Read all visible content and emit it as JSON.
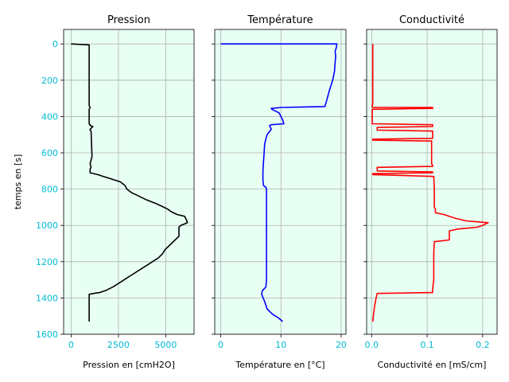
{
  "chart_data": [
    {
      "type": "line",
      "title": "Pression",
      "xlabel": "Pression en [cmH2O]",
      "ylabel": "temps en [s]",
      "xlim": [
        -400,
        6500
      ],
      "ylim": [
        1600,
        -80
      ],
      "xticks": [
        0,
        2500,
        5000
      ],
      "yticks": [
        0,
        200,
        400,
        600,
        800,
        1000,
        1200,
        1400,
        1600
      ],
      "color": "#000000",
      "x": [
        0,
        950,
        950,
        1000,
        950,
        950,
        1000,
        1000,
        1150,
        1000,
        1000,
        1050,
        1100,
        1000,
        1050,
        1000,
        1000,
        1400,
        1700,
        2000,
        2300,
        2600,
        2850,
        2950,
        3200,
        3600,
        4000,
        4500,
        4900,
        5100,
        5300,
        5600,
        6000,
        6100,
        6150,
        6050,
        5800,
        5700,
        5700,
        5600,
        5300,
        5000,
        4800,
        4600,
        4300,
        4000,
        3700,
        3400,
        3100,
        2800,
        2500,
        2200,
        1800,
        1500,
        1200,
        950,
        950,
        950
      ],
      "y": [
        0,
        5,
        340,
        350,
        360,
        440,
        445,
        450,
        455,
        470,
        475,
        480,
        620,
        660,
        680,
        690,
        710,
        720,
        730,
        740,
        750,
        760,
        780,
        800,
        820,
        840,
        860,
        880,
        900,
        910,
        925,
        940,
        950,
        970,
        985,
        990,
        1000,
        1010,
        1060,
        1070,
        1100,
        1130,
        1160,
        1180,
        1200,
        1220,
        1240,
        1260,
        1280,
        1300,
        1320,
        1340,
        1360,
        1370,
        1375,
        1380,
        1450,
        1530
      ]
    },
    {
      "type": "line",
      "title": "Température",
      "xlabel": "Température en [°C]",
      "xlim": [
        -1,
        20.8
      ],
      "ylim": [
        1600,
        -80
      ],
      "xticks": [
        0,
        10,
        20
      ],
      "yticks": [
        0,
        200,
        400,
        600,
        800,
        1000,
        1200,
        1400,
        1600
      ],
      "color": "#0000ff",
      "x": [
        0,
        19.3,
        19.2,
        19.0,
        19.1,
        19.0,
        18.9,
        18.6,
        18.1,
        17.7,
        17.3,
        10.1,
        8.4,
        8.5,
        9.7,
        10.3,
        10.5,
        8.4,
        8.1,
        8.4,
        7.7,
        7.3,
        7.2,
        7.1,
        7.0,
        7.0,
        7.1,
        7.5,
        7.6,
        7.6,
        7.6,
        7.6,
        7.6,
        7.6,
        7.6,
        7.5,
        6.9,
        6.8,
        7.3,
        7.7,
        8.6,
        9.6,
        10.3
      ],
      "y": [
        0,
        0,
        20,
        40,
        70,
        100,
        150,
        200,
        250,
        300,
        345,
        350,
        355,
        360,
        380,
        420,
        440,
        445,
        450,
        470,
        500,
        550,
        600,
        650,
        700,
        750,
        780,
        790,
        800,
        850,
        900,
        1000,
        1100,
        1200,
        1300,
        1340,
        1360,
        1380,
        1420,
        1460,
        1490,
        1510,
        1530
      ]
    },
    {
      "type": "line",
      "title": "Conductivité",
      "xlabel": "Conductivité en [mS/cm]",
      "xlim": [
        -0.009,
        0.226
      ],
      "ylim": [
        1600,
        -80
      ],
      "xticks": [
        0.0,
        0.1,
        0.2
      ],
      "yticks": [
        0,
        200,
        400,
        600,
        800,
        1000,
        1200,
        1400,
        1600
      ],
      "color": "#ff0000",
      "x": [
        0.002,
        0.002,
        0.001,
        0.002,
        0.11,
        0.11,
        0.001,
        0.001,
        0.11,
        0.11,
        0.01,
        0.01,
        0.11,
        0.11,
        0.002,
        0.002,
        0.108,
        0.108,
        0.11,
        0.11,
        0.01,
        0.01,
        0.11,
        0.11,
        0.002,
        0.002,
        0.112,
        0.113,
        0.113,
        0.115,
        0.115,
        0.13,
        0.15,
        0.17,
        0.19,
        0.21,
        0.2,
        0.19,
        0.175,
        0.155,
        0.14,
        0.14,
        0.113,
        0.112,
        0.112,
        0.11,
        0.11,
        0.01,
        0.008,
        0.005,
        0.003,
        0.002
      ],
      "y": [
        0,
        330,
        345,
        350,
        350,
        355,
        360,
        440,
        445,
        455,
        460,
        475,
        480,
        520,
        525,
        530,
        535,
        660,
        670,
        675,
        680,
        700,
        705,
        710,
        715,
        720,
        730,
        800,
        900,
        910,
        930,
        940,
        960,
        975,
        980,
        985,
        1000,
        1010,
        1015,
        1020,
        1030,
        1080,
        1090,
        1150,
        1300,
        1350,
        1370,
        1375,
        1400,
        1450,
        1500,
        1530
      ]
    }
  ]
}
